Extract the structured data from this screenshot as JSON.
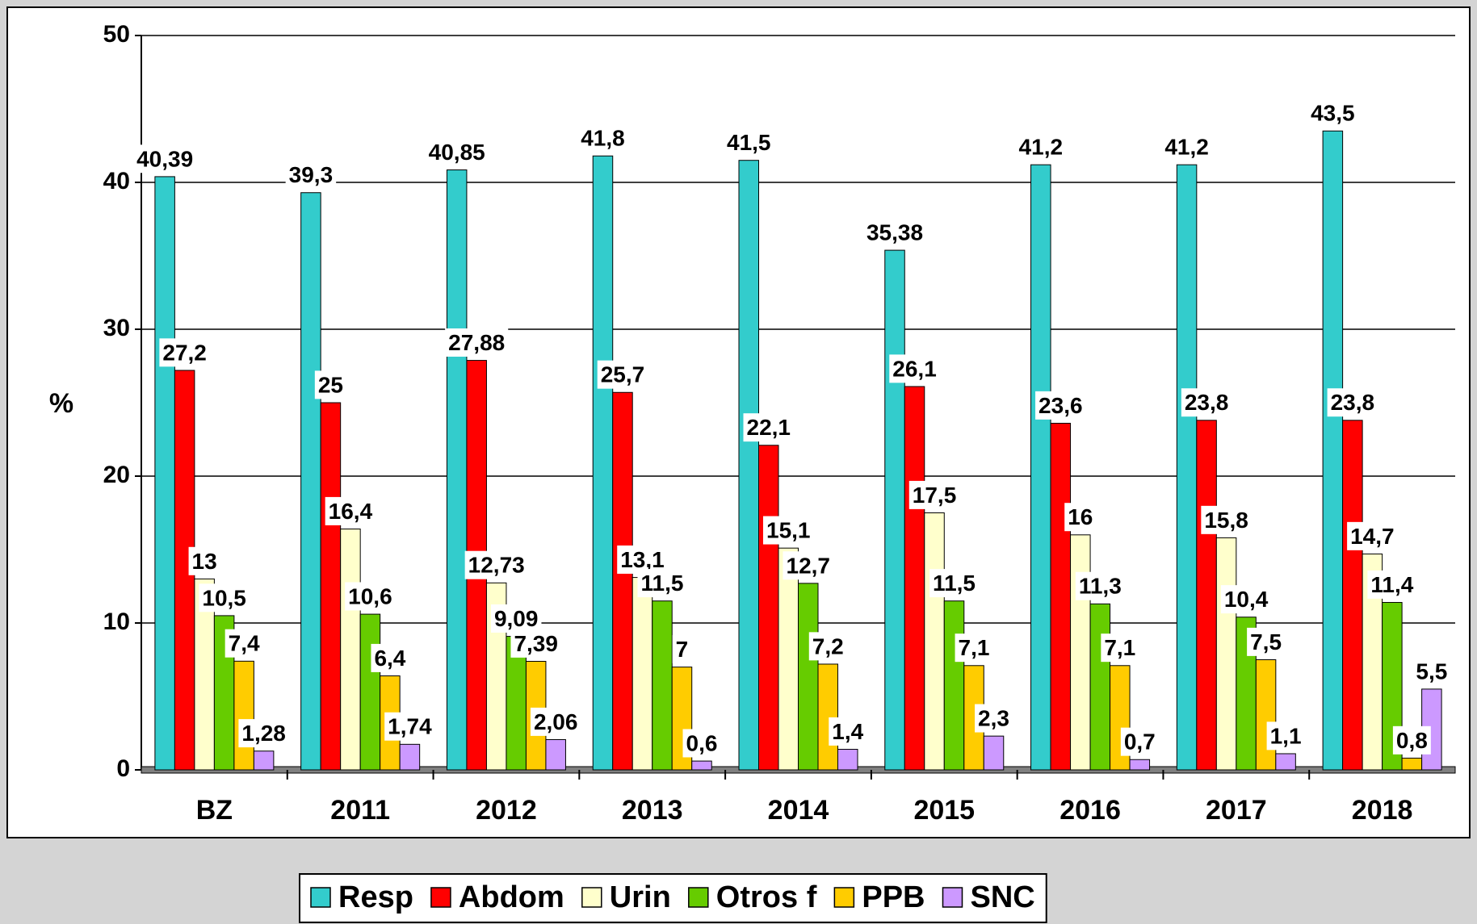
{
  "chart_data": {
    "type": "bar",
    "y_label": "%",
    "categories": [
      "BZ",
      "2011",
      "2012",
      "2013",
      "2014",
      "2015",
      "2016",
      "2017",
      "2018"
    ],
    "series": [
      {
        "name": "Resp",
        "color": "#33cccc",
        "values": [
          40.39,
          39.3,
          40.85,
          41.8,
          41.5,
          35.38,
          41.2,
          41.2,
          43.5
        ],
        "value_labels": [
          "40,39",
          "39,3",
          "40,85",
          "41,8",
          "41,5",
          "35,38",
          "41,2",
          "41,2",
          "43,5"
        ]
      },
      {
        "name": "Abdom",
        "color": "#ff0000",
        "values": [
          27.2,
          25,
          27.88,
          25.7,
          22.1,
          26.1,
          23.6,
          23.8,
          23.8
        ],
        "value_labels": [
          "27,2",
          "25",
          "27,88",
          "25,7",
          "22,1",
          "26,1",
          "23,6",
          "23,8",
          "23,8"
        ]
      },
      {
        "name": "Urin",
        "color": "#ffffcc",
        "values": [
          13,
          16.4,
          12.73,
          13.1,
          15.1,
          17.5,
          16,
          15.8,
          14.7
        ],
        "value_labels": [
          "13",
          "16,4",
          "12,73",
          "13,1",
          "15,1",
          "17,5",
          "16",
          "15,8",
          "14,7"
        ]
      },
      {
        "name": "Otros f",
        "color": "#66cc00",
        "values": [
          10.5,
          10.6,
          9.09,
          11.5,
          12.7,
          11.5,
          11.3,
          10.4,
          11.4
        ],
        "value_labels": [
          "10,5",
          "10,6",
          "9,09",
          "11,5",
          "12,7",
          "11,5",
          "11,3",
          "10,4",
          "11,4"
        ]
      },
      {
        "name": "PPB",
        "color": "#ffcc00",
        "values": [
          7.4,
          6.4,
          7.39,
          7,
          7.2,
          7.1,
          7.1,
          7.5,
          0.8
        ],
        "value_labels": [
          "7,4",
          "6,4",
          "7,39",
          "7",
          "7,2",
          "7,1",
          "7,1",
          "7,5",
          "0,8"
        ]
      },
      {
        "name": "SNC",
        "color": "#cc99ff",
        "values": [
          1.28,
          1.74,
          2.06,
          0.6,
          1.4,
          2.3,
          0.7,
          1.1,
          5.5
        ],
        "value_labels": [
          "1,28",
          "1,74",
          "2,06",
          "0,6",
          "1,4",
          "2,3",
          "0,7",
          "1,1",
          "5,5"
        ]
      }
    ],
    "ylim": [
      0,
      50
    ],
    "yticks": [
      0,
      10,
      20,
      30,
      40,
      50
    ],
    "grid": true,
    "legend": "bottom"
  }
}
